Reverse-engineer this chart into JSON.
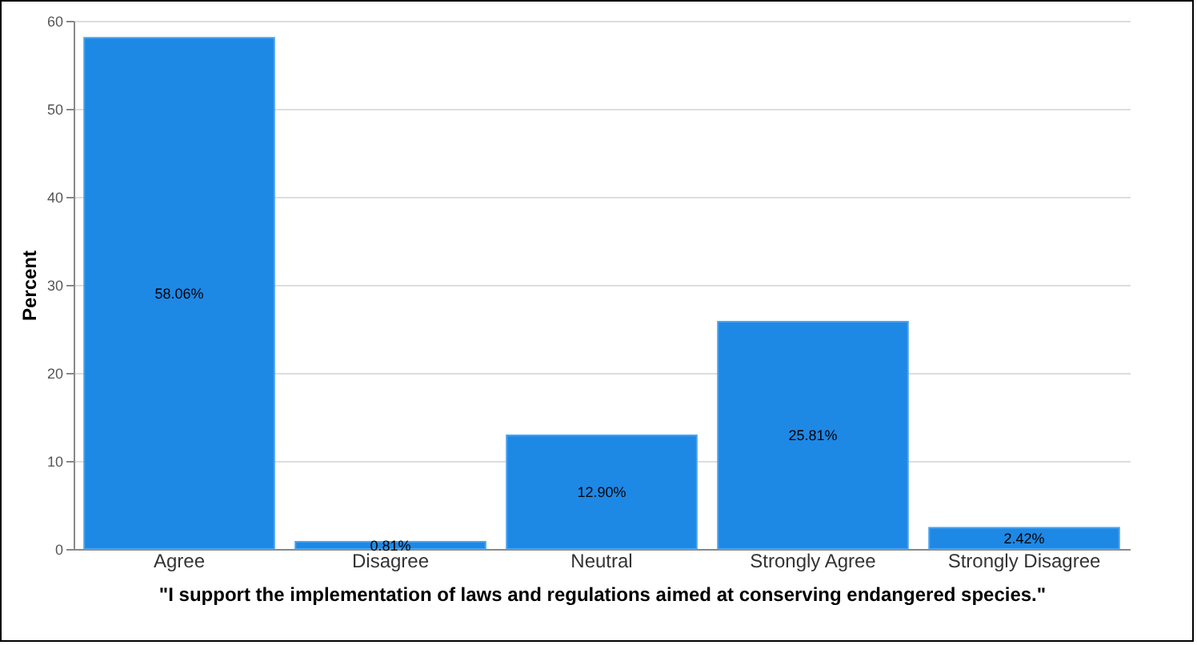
{
  "chart_data": {
    "type": "bar",
    "xlabel": "\"I support the implementation of laws and regulations aimed at conserving endangered species.\"",
    "ylabel": "Percent",
    "categories": [
      "Agree",
      "Disagree",
      "Neutral",
      "Strongly Agree",
      "Strongly Disagree"
    ],
    "values": [
      58.06,
      0.81,
      12.9,
      25.81,
      2.42
    ],
    "value_labels": [
      "58.06%",
      "0.81%",
      "12.90%",
      "25.81%",
      "2.42%"
    ],
    "color": "#1e88e5",
    "ylim": [
      0,
      60
    ],
    "yticks": [
      0,
      10,
      20,
      30,
      40,
      50,
      60
    ],
    "grid": "y"
  }
}
